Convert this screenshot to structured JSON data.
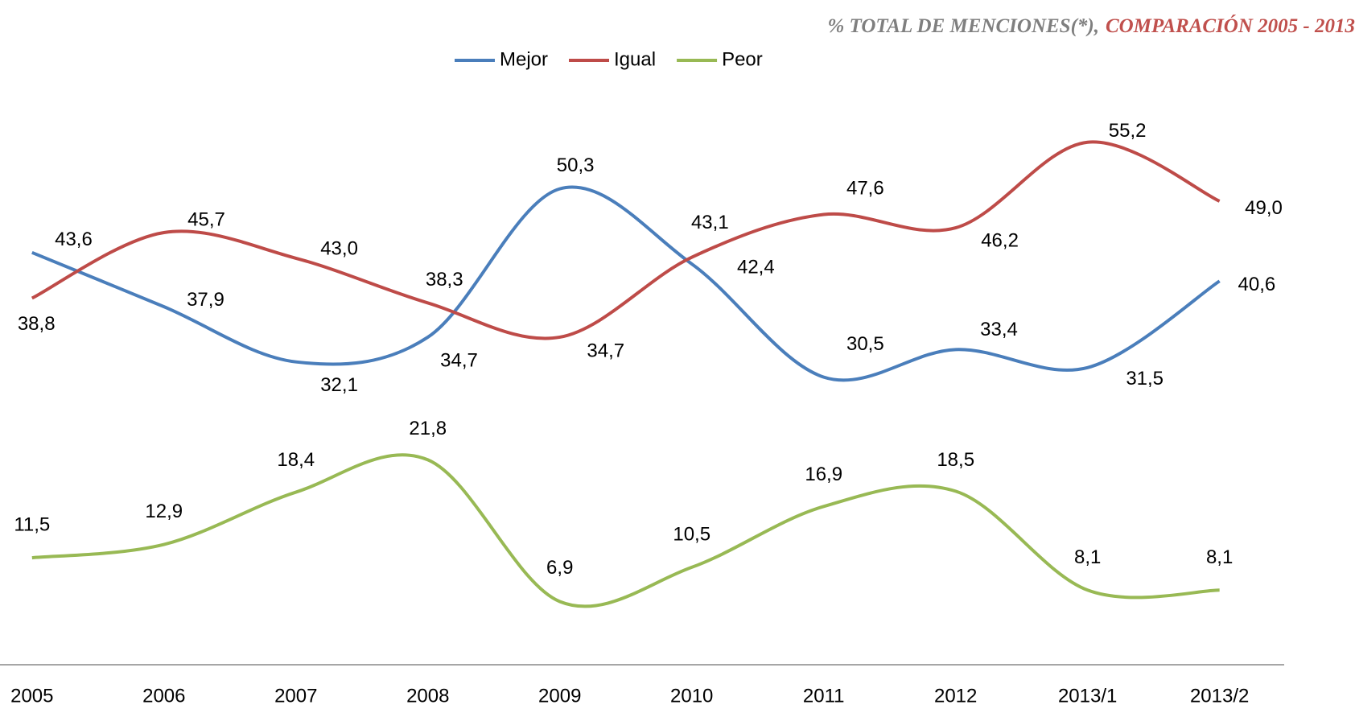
{
  "chart_data": {
    "type": "line",
    "title": "% TOTAL DE MENCIONES(*),",
    "subtitle": "COMPARACIÓN 2005  - 2013",
    "categories": [
      "2005",
      "2006",
      "2007",
      "2008",
      "2009",
      "2010",
      "2011",
      "2012",
      "2013/1",
      "2013/2"
    ],
    "series": [
      {
        "name": "Mejor",
        "color": "#4a7ebb",
        "values": [
          43.6,
          37.9,
          32.1,
          34.7,
          50.3,
          42.4,
          30.5,
          33.4,
          31.5,
          40.6
        ],
        "value_labels": [
          "43,6",
          "37,9",
          "32,1",
          "34,7",
          "50,3",
          "42,4",
          "30,5",
          "33,4",
          "31,5",
          "40,6"
        ]
      },
      {
        "name": "Igual",
        "color": "#be4b48",
        "values": [
          38.8,
          45.7,
          43.0,
          38.3,
          34.7,
          43.1,
          47.6,
          46.2,
          55.2,
          49.0
        ],
        "value_labels": [
          "38,8",
          "45,7",
          "43,0",
          "38,3",
          "34,7",
          "43,1",
          "47,6",
          "46,2",
          "55,2",
          "49,0"
        ]
      },
      {
        "name": "Peor",
        "color": "#98b954",
        "values": [
          11.5,
          12.9,
          18.4,
          21.8,
          6.9,
          10.5,
          16.9,
          18.5,
          8.1,
          8.1
        ],
        "value_labels": [
          "11,5",
          "12,9",
          "18,4",
          "21,8",
          "6,9",
          "10,5",
          "16,9",
          "18,5",
          "8,1",
          "8,1"
        ]
      }
    ],
    "ylim": [
      0,
      60
    ],
    "legend": "top"
  }
}
